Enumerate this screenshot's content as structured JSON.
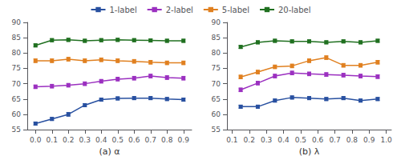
{
  "chart_data": [
    {
      "type": "line",
      "xlabel": "(a) α",
      "legend": "top",
      "grid": false,
      "marker": "square",
      "x": [
        0.0,
        0.1,
        0.2,
        0.3,
        0.4,
        0.5,
        0.6,
        0.7,
        0.8,
        0.9
      ],
      "xlim": [
        -0.05,
        0.95
      ],
      "xticks": [
        {
          "value": 0.0,
          "label": "0.0"
        },
        0.1,
        0.2,
        0.3,
        0.4,
        0.5,
        0.6,
        0.7,
        0.8,
        0.9
      ],
      "ylim": [
        55,
        90
      ],
      "yticks": [
        55,
        60,
        65,
        70,
        75,
        80,
        85,
        90
      ],
      "series": [
        {
          "name": "1-label",
          "color": "#2850a0",
          "values": [
            57.0,
            58.5,
            60.0,
            63.0,
            64.8,
            65.2,
            65.3,
            65.3,
            65.0,
            64.8
          ],
          "yerr": [
            0.5,
            0.5,
            0.6,
            0.5,
            0.5,
            0.5,
            0.5,
            0.5,
            0.5,
            0.5
          ]
        },
        {
          "name": "2-label",
          "color": "#9b30c0",
          "values": [
            69.0,
            69.2,
            69.5,
            70.0,
            70.8,
            71.5,
            71.8,
            72.5,
            72.0,
            71.8
          ],
          "yerr": [
            0.6,
            0.6,
            0.6,
            0.6,
            0.6,
            0.6,
            0.6,
            0.6,
            0.6,
            0.6
          ]
        },
        {
          "name": "5-label",
          "color": "#e08020",
          "values": [
            77.5,
            77.5,
            78.0,
            77.5,
            77.8,
            77.5,
            77.3,
            77.0,
            76.8,
            76.8
          ],
          "yerr": [
            0.6,
            0.6,
            0.6,
            0.6,
            0.6,
            0.6,
            0.6,
            0.6,
            0.6,
            0.6
          ]
        },
        {
          "name": "20-label",
          "color": "#207020",
          "values": [
            82.5,
            84.2,
            84.3,
            84.0,
            84.2,
            84.3,
            84.2,
            84.1,
            84.0,
            84.0
          ],
          "yerr": [
            0.5,
            0.5,
            0.5,
            0.5,
            0.5,
            0.5,
            0.5,
            0.5,
            0.5,
            0.5
          ]
        }
      ]
    },
    {
      "type": "line",
      "xlabel": "(b) λ",
      "grid": false,
      "marker": "square",
      "x": [
        0.15,
        0.25,
        0.35,
        0.45,
        0.55,
        0.65,
        0.75,
        0.85,
        0.95
      ],
      "xlim": [
        0.07,
        1.03
      ],
      "xticks": [
        0.1,
        0.2,
        0.3,
        0.4,
        0.5,
        0.6,
        0.7,
        0.8,
        0.9,
        {
          "value": 1.0,
          "label": "1.0"
        }
      ],
      "ylim": [
        55,
        90
      ],
      "yticks": [
        55,
        60,
        65,
        70,
        75,
        80,
        85,
        90
      ],
      "series": [
        {
          "name": "1-label",
          "color": "#2850a0",
          "values": [
            62.5,
            62.5,
            64.5,
            65.5,
            65.3,
            65.0,
            65.3,
            64.5,
            65.0
          ],
          "yerr": [
            0.5,
            0.5,
            0.5,
            0.5,
            0.5,
            0.5,
            0.5,
            0.5,
            0.5
          ]
        },
        {
          "name": "2-label",
          "color": "#9b30c0",
          "values": [
            68.0,
            70.2,
            72.5,
            73.5,
            73.2,
            73.0,
            72.8,
            72.5,
            72.3
          ],
          "yerr": [
            0.6,
            0.6,
            0.6,
            0.6,
            0.6,
            0.6,
            0.6,
            0.6,
            0.6
          ]
        },
        {
          "name": "5-label",
          "color": "#e08020",
          "values": [
            72.2,
            73.8,
            75.5,
            75.8,
            77.5,
            78.5,
            76.0,
            76.0,
            77.0
          ],
          "yerr": [
            0.6,
            0.6,
            0.6,
            0.6,
            0.6,
            0.6,
            0.6,
            0.6,
            0.6
          ]
        },
        {
          "name": "20-label",
          "color": "#207020",
          "values": [
            82.0,
            83.5,
            84.0,
            83.8,
            83.8,
            83.5,
            83.8,
            83.5,
            84.0
          ],
          "yerr": [
            0.5,
            0.5,
            0.5,
            0.5,
            0.5,
            0.5,
            0.5,
            0.5,
            0.5
          ]
        }
      ]
    }
  ]
}
